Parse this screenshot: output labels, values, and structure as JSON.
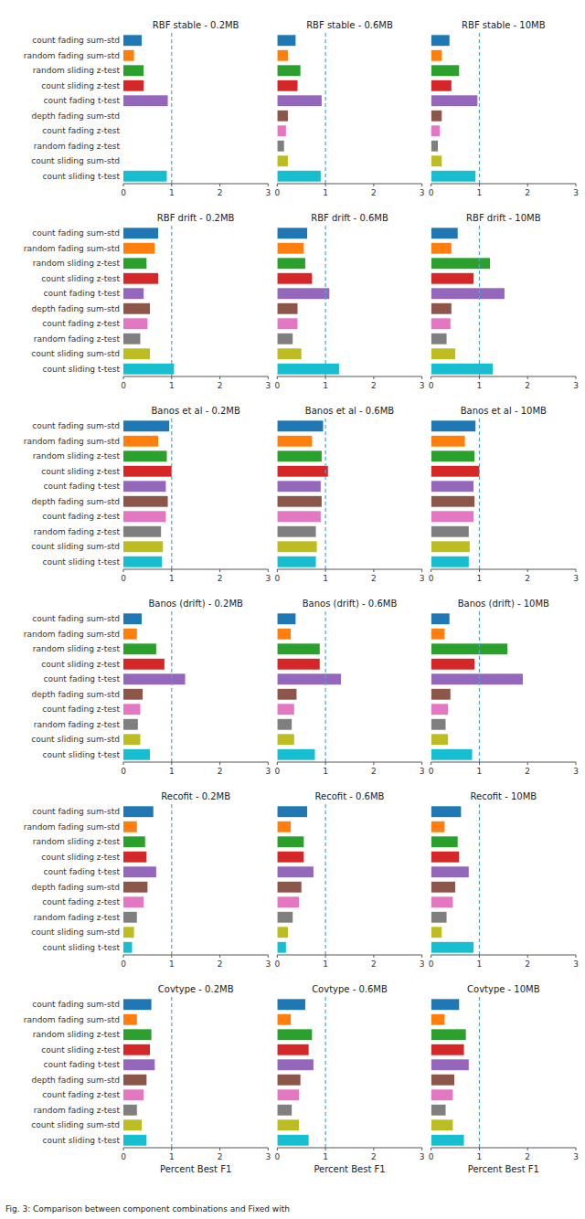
{
  "chart_data": [
    {
      "type": "bar",
      "orientation": "horizontal",
      "title": "RBF stable - 0.2MB",
      "categories": [
        "count fading sum-std",
        "random fading sum-std",
        "random sliding z-test",
        "count sliding z-test",
        "count fading t-test",
        "depth fading sum-std",
        "count fading z-test",
        "random fading z-test",
        "count sliding sum-std",
        "count sliding t-test"
      ],
      "values": [
        0.38,
        0.22,
        0.42,
        0.42,
        0.92,
        0.0,
        0.0,
        0.0,
        0.0,
        0.9
      ],
      "colors": [
        "#1f77b4",
        "#ff7f0e",
        "#2ca02c",
        "#d62728",
        "#9467bd",
        "#8c564b",
        "#e377c2",
        "#7f7f7f",
        "#bcbd22",
        "#17becf"
      ],
      "reference_x": 1.0,
      "xlim": [
        0,
        3
      ],
      "xticks": [
        0,
        1,
        2,
        3
      ],
      "grid": false
    },
    {
      "type": "bar",
      "orientation": "horizontal",
      "title": "RBF stable - 0.6MB",
      "categories": [
        "count fading sum-std",
        "random fading sum-std",
        "random sliding z-test",
        "count sliding z-test",
        "count fading t-test",
        "depth fading sum-std",
        "count fading z-test",
        "random fading z-test",
        "count sliding sum-std",
        "count sliding t-test"
      ],
      "values": [
        0.38,
        0.22,
        0.48,
        0.42,
        0.92,
        0.22,
        0.18,
        0.14,
        0.22,
        0.9
      ],
      "colors": [
        "#1f77b4",
        "#ff7f0e",
        "#2ca02c",
        "#d62728",
        "#9467bd",
        "#8c564b",
        "#e377c2",
        "#7f7f7f",
        "#bcbd22",
        "#17becf"
      ],
      "reference_x": 1.0,
      "xlim": [
        0,
        3
      ],
      "xticks": [
        0,
        1,
        2,
        3
      ],
      "grid": false,
      "tick_labels": "x"
    },
    {
      "type": "bar",
      "orientation": "horizontal",
      "title": "RBF stable - 10MB",
      "categories": [
        "count fading sum-std",
        "random fading sum-std",
        "random sliding z-test",
        "count sliding z-test",
        "count fading t-test",
        "depth fading sum-std",
        "count fading z-test",
        "random fading z-test",
        "count sliding sum-std",
        "count sliding t-test"
      ],
      "values": [
        0.38,
        0.22,
        0.58,
        0.42,
        0.96,
        0.22,
        0.18,
        0.14,
        0.22,
        0.92
      ],
      "colors": [
        "#1f77b4",
        "#ff7f0e",
        "#2ca02c",
        "#d62728",
        "#9467bd",
        "#8c564b",
        "#e377c2",
        "#7f7f7f",
        "#bcbd22",
        "#17becf"
      ],
      "reference_x": 1.0,
      "xlim": [
        0,
        3
      ],
      "xticks": [
        0,
        1,
        2,
        3
      ],
      "grid": false,
      "tick_labels": "x"
    },
    {
      "type": "bar",
      "orientation": "horizontal",
      "title": "RBF drift - 0.2MB",
      "categories": [
        "count fading sum-std",
        "random fading sum-std",
        "random sliding z-test",
        "count sliding z-test",
        "count fading t-test",
        "depth fading sum-std",
        "count fading z-test",
        "random fading z-test",
        "count sliding sum-std",
        "count sliding t-test"
      ],
      "values": [
        0.72,
        0.65,
        0.48,
        0.72,
        0.42,
        0.55,
        0.5,
        0.35,
        0.55,
        1.05
      ],
      "colors": [
        "#1f77b4",
        "#ff7f0e",
        "#2ca02c",
        "#d62728",
        "#9467bd",
        "#8c564b",
        "#e377c2",
        "#7f7f7f",
        "#bcbd22",
        "#17becf"
      ],
      "reference_x": 1.0,
      "xlim": [
        0,
        3
      ],
      "xticks": [
        0,
        1,
        2,
        3
      ],
      "grid": false
    },
    {
      "type": "bar",
      "orientation": "horizontal",
      "title": "RBF drift - 0.6MB",
      "categories": [
        "count fading sum-std",
        "random fading sum-std",
        "random sliding z-test",
        "count sliding z-test",
        "count fading t-test",
        "depth fading sum-std",
        "count fading z-test",
        "random fading z-test",
        "count sliding sum-std",
        "count sliding t-test"
      ],
      "values": [
        0.62,
        0.55,
        0.58,
        0.72,
        1.08,
        0.42,
        0.42,
        0.32,
        0.5,
        1.28
      ],
      "colors": [
        "#1f77b4",
        "#ff7f0e",
        "#2ca02c",
        "#d62728",
        "#9467bd",
        "#8c564b",
        "#e377c2",
        "#7f7f7f",
        "#bcbd22",
        "#17becf"
      ],
      "reference_x": 1.0,
      "xlim": [
        0,
        3
      ],
      "xticks": [
        0,
        1,
        2,
        3
      ],
      "grid": false,
      "tick_labels": "x"
    },
    {
      "type": "bar",
      "orientation": "horizontal",
      "title": "RBF drift - 10MB",
      "categories": [
        "count fading sum-std",
        "random fading sum-std",
        "random sliding z-test",
        "count sliding z-test",
        "count fading t-test",
        "depth fading sum-std",
        "count fading z-test",
        "random fading z-test",
        "count sliding sum-std",
        "count sliding t-test"
      ],
      "values": [
        0.55,
        0.42,
        1.22,
        0.88,
        1.52,
        0.42,
        0.4,
        0.32,
        0.5,
        1.28
      ],
      "colors": [
        "#1f77b4",
        "#ff7f0e",
        "#2ca02c",
        "#d62728",
        "#9467bd",
        "#8c564b",
        "#e377c2",
        "#7f7f7f",
        "#bcbd22",
        "#17becf"
      ],
      "reference_x": 1.0,
      "xlim": [
        0,
        3
      ],
      "xticks": [
        0,
        1,
        2,
        3
      ],
      "grid": false,
      "tick_labels": "x"
    },
    {
      "type": "bar",
      "orientation": "horizontal",
      "title": "Banos et al - 0.2MB",
      "categories": [
        "count fading sum-std",
        "random fading sum-std",
        "random sliding z-test",
        "count sliding z-test",
        "count fading t-test",
        "depth fading sum-std",
        "count fading z-test",
        "random fading z-test",
        "count sliding sum-std",
        "count sliding t-test"
      ],
      "values": [
        0.95,
        0.72,
        0.9,
        1.0,
        0.88,
        0.92,
        0.88,
        0.78,
        0.82,
        0.8
      ],
      "colors": [
        "#1f77b4",
        "#ff7f0e",
        "#2ca02c",
        "#d62728",
        "#9467bd",
        "#8c564b",
        "#e377c2",
        "#7f7f7f",
        "#bcbd22",
        "#17becf"
      ],
      "reference_x": 1.0,
      "xlim": [
        0,
        3
      ],
      "xticks": [
        0,
        1,
        2,
        3
      ],
      "grid": false
    },
    {
      "type": "bar",
      "orientation": "horizontal",
      "title": "Banos et al - 0.6MB",
      "categories": [
        "count fading sum-std",
        "random fading sum-std",
        "random sliding z-test",
        "count sliding z-test",
        "count fading t-test",
        "depth fading sum-std",
        "count fading z-test",
        "random fading z-test",
        "count sliding sum-std",
        "count sliding t-test"
      ],
      "values": [
        0.95,
        0.72,
        0.92,
        1.05,
        0.9,
        0.92,
        0.9,
        0.8,
        0.82,
        0.8
      ],
      "colors": [
        "#1f77b4",
        "#ff7f0e",
        "#2ca02c",
        "#d62728",
        "#9467bd",
        "#8c564b",
        "#e377c2",
        "#7f7f7f",
        "#bcbd22",
        "#17becf"
      ],
      "reference_x": 1.0,
      "xlim": [
        0,
        3
      ],
      "xticks": [
        0,
        1,
        2,
        3
      ],
      "grid": false,
      "tick_labels": "x"
    },
    {
      "type": "bar",
      "orientation": "horizontal",
      "title": "Banos et al - 10MB",
      "categories": [
        "count fading sum-std",
        "random fading sum-std",
        "random sliding z-test",
        "count sliding z-test",
        "count fading t-test",
        "depth fading sum-std",
        "count fading z-test",
        "random fading z-test",
        "count sliding sum-std",
        "count sliding t-test"
      ],
      "values": [
        0.92,
        0.7,
        0.9,
        1.0,
        0.88,
        0.9,
        0.88,
        0.78,
        0.8,
        0.78
      ],
      "colors": [
        "#1f77b4",
        "#ff7f0e",
        "#2ca02c",
        "#d62728",
        "#9467bd",
        "#8c564b",
        "#e377c2",
        "#7f7f7f",
        "#bcbd22",
        "#17becf"
      ],
      "reference_x": 1.0,
      "xlim": [
        0,
        3
      ],
      "xticks": [
        0,
        1,
        2,
        3
      ],
      "grid": false,
      "tick_labels": "x"
    },
    {
      "type": "bar",
      "orientation": "horizontal",
      "title": "Banos (drift) - 0.2MB",
      "categories": [
        "count fading sum-std",
        "random fading sum-std",
        "random sliding z-test",
        "count sliding z-test",
        "count fading t-test",
        "depth fading sum-std",
        "count fading z-test",
        "random fading z-test",
        "count sliding sum-std",
        "count sliding t-test"
      ],
      "values": [
        0.38,
        0.28,
        0.68,
        0.85,
        1.28,
        0.4,
        0.35,
        0.3,
        0.35,
        0.55
      ],
      "colors": [
        "#1f77b4",
        "#ff7f0e",
        "#2ca02c",
        "#d62728",
        "#9467bd",
        "#8c564b",
        "#e377c2",
        "#7f7f7f",
        "#bcbd22",
        "#17becf"
      ],
      "reference_x": 1.0,
      "xlim": [
        0,
        3
      ],
      "xticks": [
        0,
        1,
        2,
        3
      ],
      "grid": false
    },
    {
      "type": "bar",
      "orientation": "horizontal",
      "title": "Banos (drift) - 0.6MB",
      "categories": [
        "count fading sum-std",
        "random fading sum-std",
        "random sliding z-test",
        "count sliding z-test",
        "count fading t-test",
        "depth fading sum-std",
        "count fading z-test",
        "random fading z-test",
        "count sliding sum-std",
        "count sliding t-test"
      ],
      "values": [
        0.38,
        0.28,
        0.88,
        0.88,
        1.32,
        0.4,
        0.35,
        0.3,
        0.35,
        0.78
      ],
      "colors": [
        "#1f77b4",
        "#ff7f0e",
        "#2ca02c",
        "#d62728",
        "#9467bd",
        "#8c564b",
        "#e377c2",
        "#7f7f7f",
        "#bcbd22",
        "#17becf"
      ],
      "reference_x": 1.0,
      "xlim": [
        0,
        3
      ],
      "xticks": [
        0,
        1,
        2,
        3
      ],
      "grid": false,
      "tick_labels": "x"
    },
    {
      "type": "bar",
      "orientation": "horizontal",
      "title": "Banos (drift) - 10MB",
      "categories": [
        "count fading sum-std",
        "random fading sum-std",
        "random sliding z-test",
        "count sliding z-test",
        "count fading t-test",
        "depth fading sum-std",
        "count fading z-test",
        "random fading z-test",
        "count sliding sum-std",
        "count sliding t-test"
      ],
      "values": [
        0.38,
        0.28,
        1.58,
        0.9,
        1.9,
        0.4,
        0.35,
        0.3,
        0.35,
        0.85
      ],
      "colors": [
        "#1f77b4",
        "#ff7f0e",
        "#2ca02c",
        "#d62728",
        "#9467bd",
        "#8c564b",
        "#e377c2",
        "#7f7f7f",
        "#bcbd22",
        "#17becf"
      ],
      "reference_x": 1.0,
      "xlim": [
        0,
        3
      ],
      "xticks": [
        0,
        1,
        2,
        3
      ],
      "grid": false,
      "tick_labels": "x"
    },
    {
      "type": "bar",
      "orientation": "horizontal",
      "title": "Recofit - 0.2MB",
      "categories": [
        "count fading sum-std",
        "random fading sum-std",
        "random sliding z-test",
        "count sliding z-test",
        "count fading t-test",
        "depth fading sum-std",
        "count fading z-test",
        "random fading z-test",
        "count sliding sum-std",
        "count sliding t-test"
      ],
      "values": [
        0.62,
        0.28,
        0.45,
        0.48,
        0.68,
        0.5,
        0.42,
        0.28,
        0.22,
        0.18
      ],
      "colors": [
        "#1f77b4",
        "#ff7f0e",
        "#2ca02c",
        "#d62728",
        "#9467bd",
        "#8c564b",
        "#e377c2",
        "#7f7f7f",
        "#bcbd22",
        "#17becf"
      ],
      "reference_x": 1.0,
      "xlim": [
        0,
        3
      ],
      "xticks": [
        0,
        1,
        2,
        3
      ],
      "grid": false
    },
    {
      "type": "bar",
      "orientation": "horizontal",
      "title": "Recofit - 0.6MB",
      "categories": [
        "count fading sum-std",
        "random fading sum-std",
        "random sliding z-test",
        "count sliding z-test",
        "count fading t-test",
        "depth fading sum-std",
        "count fading z-test",
        "random fading z-test",
        "count sliding sum-std",
        "count sliding t-test"
      ],
      "values": [
        0.62,
        0.28,
        0.55,
        0.55,
        0.75,
        0.5,
        0.45,
        0.32,
        0.22,
        0.18
      ],
      "colors": [
        "#1f77b4",
        "#ff7f0e",
        "#2ca02c",
        "#d62728",
        "#9467bd",
        "#8c564b",
        "#e377c2",
        "#7f7f7f",
        "#bcbd22",
        "#17becf"
      ],
      "reference_x": 1.0,
      "xlim": [
        0,
        3
      ],
      "xticks": [
        0,
        1,
        2,
        3
      ],
      "grid": false,
      "tick_labels": "x"
    },
    {
      "type": "bar",
      "orientation": "horizontal",
      "title": "Recofit - 10MB",
      "categories": [
        "count fading sum-std",
        "random fading sum-std",
        "random sliding z-test",
        "count sliding z-test",
        "count fading t-test",
        "depth fading sum-std",
        "count fading z-test",
        "random fading z-test",
        "count sliding sum-std",
        "count sliding t-test"
      ],
      "values": [
        0.62,
        0.28,
        0.55,
        0.58,
        0.78,
        0.5,
        0.45,
        0.32,
        0.22,
        0.88
      ],
      "colors": [
        "#1f77b4",
        "#ff7f0e",
        "#2ca02c",
        "#d62728",
        "#9467bd",
        "#8c564b",
        "#e377c2",
        "#7f7f7f",
        "#bcbd22",
        "#17becf"
      ],
      "reference_x": 1.0,
      "xlim": [
        0,
        3
      ],
      "xticks": [
        0,
        1,
        2,
        3
      ],
      "grid": false,
      "tick_labels": "x"
    },
    {
      "type": "bar",
      "orientation": "horizontal",
      "title": "Covtype - 0.2MB",
      "categories": [
        "count fading sum-std",
        "random fading sum-std",
        "random sliding z-test",
        "count sliding z-test",
        "count fading t-test",
        "depth fading sum-std",
        "count fading z-test",
        "random fading z-test",
        "count sliding sum-std",
        "count sliding t-test"
      ],
      "values": [
        0.58,
        0.28,
        0.58,
        0.55,
        0.65,
        0.48,
        0.42,
        0.28,
        0.38,
        0.48
      ],
      "colors": [
        "#1f77b4",
        "#ff7f0e",
        "#2ca02c",
        "#d62728",
        "#9467bd",
        "#8c564b",
        "#e377c2",
        "#7f7f7f",
        "#bcbd22",
        "#17becf"
      ],
      "reference_x": 1.0,
      "xlim": [
        0,
        3
      ],
      "xticks": [
        0,
        1,
        2,
        3
      ],
      "grid": false,
      "xlabel": "Percent Best F1"
    },
    {
      "type": "bar",
      "orientation": "horizontal",
      "title": "Covtype - 0.6MB",
      "categories": [
        "count fading sum-std",
        "random fading sum-std",
        "random sliding z-test",
        "count sliding z-test",
        "count fading t-test",
        "depth fading sum-std",
        "count fading z-test",
        "random fading z-test",
        "count sliding sum-std",
        "count sliding t-test"
      ],
      "values": [
        0.58,
        0.28,
        0.72,
        0.65,
        0.75,
        0.48,
        0.45,
        0.3,
        0.45,
        0.65
      ],
      "colors": [
        "#1f77b4",
        "#ff7f0e",
        "#2ca02c",
        "#d62728",
        "#9467bd",
        "#8c564b",
        "#e377c2",
        "#7f7f7f",
        "#bcbd22",
        "#17becf"
      ],
      "reference_x": 1.0,
      "xlim": [
        0,
        3
      ],
      "xticks": [
        0,
        1,
        2,
        3
      ],
      "grid": false,
      "tick_labels": "x",
      "xlabel": "Percent Best F1"
    },
    {
      "type": "bar",
      "orientation": "horizontal",
      "title": "Covtype - 10MB",
      "categories": [
        "count fading sum-std",
        "random fading sum-std",
        "random sliding z-test",
        "count sliding z-test",
        "count fading t-test",
        "depth fading sum-std",
        "count fading z-test",
        "random fading z-test",
        "count sliding sum-std",
        "count sliding t-test"
      ],
      "values": [
        0.58,
        0.28,
        0.72,
        0.68,
        0.78,
        0.48,
        0.45,
        0.3,
        0.45,
        0.68
      ],
      "colors": [
        "#1f77b4",
        "#ff7f0e",
        "#2ca02c",
        "#d62728",
        "#9467bd",
        "#8c564b",
        "#e377c2",
        "#7f7f7f",
        "#bcbd22",
        "#17becf"
      ],
      "reference_x": 1.0,
      "xlim": [
        0,
        3
      ],
      "xticks": [
        0,
        1,
        2,
        3
      ],
      "grid": false,
      "tick_labels": "x",
      "xlabel": "Percent Best F1"
    }
  ],
  "caption": "Fig. 3: Comparison between component combinations and Fixed with"
}
